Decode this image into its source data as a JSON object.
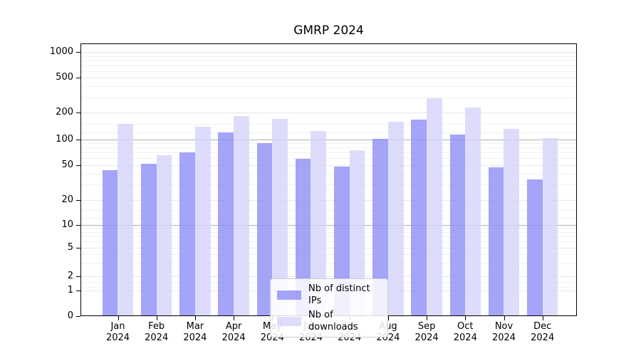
{
  "chart_data": {
    "type": "bar",
    "title": "GMRP 2024",
    "categories": [
      "Jan 2024",
      "Feb 2024",
      "Mar 2024",
      "Apr 2024",
      "May 2024",
      "Jun 2024",
      "Jul 2024",
      "Aug 2024",
      "Sep 2024",
      "Oct 2024",
      "Nov 2024",
      "Dec 2024"
    ],
    "series": [
      {
        "name": "Nb of distinct IPs",
        "color": "#8a8af6",
        "fill_alpha": 0.78,
        "values": [
          44,
          52,
          70,
          120,
          90,
          59,
          48,
          101,
          168,
          114,
          47,
          34
        ]
      },
      {
        "name": "Nb of downloads",
        "color": "#d4d4fa",
        "fill_alpha": 0.78,
        "values": [
          149,
          65,
          140,
          184,
          171,
          125,
          75,
          158,
          295,
          231,
          132,
          104
        ]
      }
    ],
    "xlabel": "",
    "ylabel": "",
    "yscale": "symlog",
    "y_ticks": [
      0,
      1,
      2,
      5,
      10,
      20,
      50,
      100,
      200,
      500,
      1000
    ],
    "ylim": [
      0,
      1250
    ],
    "grid": true,
    "legend_position": "lower center"
  }
}
